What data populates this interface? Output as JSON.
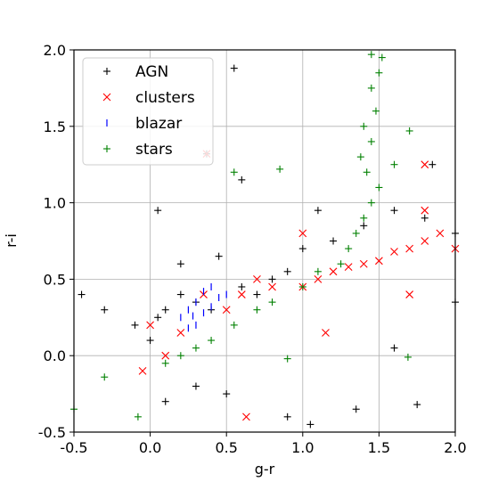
{
  "chart_data": {
    "type": "scatter",
    "xlabel": "g-r",
    "ylabel": "r-i",
    "xlim": [
      -0.5,
      2.0
    ],
    "ylim": [
      -0.5,
      2.0
    ],
    "xticks": [
      "-0.5",
      "0.0",
      "0.5",
      "1.0",
      "1.5",
      "2.0"
    ],
    "yticks": [
      "-0.5",
      "0.0",
      "0.5",
      "1.0",
      "1.5",
      "2.0"
    ],
    "grid": true,
    "legend_position": "top-left",
    "series": [
      {
        "name": "AGN",
        "marker": "+",
        "color": "#000000",
        "points": [
          [
            0.05,
            0.25
          ],
          [
            0.1,
            0.3
          ],
          [
            0.2,
            0.4
          ],
          [
            0.3,
            0.35
          ],
          [
            0.0,
            0.1
          ],
          [
            -0.1,
            0.2
          ],
          [
            0.4,
            0.3
          ],
          [
            0.6,
            0.45
          ],
          [
            0.7,
            0.4
          ],
          [
            0.8,
            0.5
          ],
          [
            0.9,
            0.55
          ],
          [
            1.0,
            0.7
          ],
          [
            1.2,
            0.75
          ],
          [
            1.4,
            0.85
          ],
          [
            1.6,
            0.95
          ],
          [
            1.8,
            0.9
          ],
          [
            2.0,
            0.8
          ],
          [
            0.55,
            1.88
          ],
          [
            0.37,
            1.32
          ],
          [
            0.05,
            0.95
          ],
          [
            0.6,
            1.15
          ],
          [
            1.1,
            0.95
          ],
          [
            1.85,
            1.25
          ],
          [
            -0.45,
            0.4
          ],
          [
            -0.3,
            0.3
          ],
          [
            0.1,
            -0.3
          ],
          [
            0.3,
            -0.2
          ],
          [
            0.5,
            -0.25
          ],
          [
            0.9,
            -0.4
          ],
          [
            1.05,
            -0.45
          ],
          [
            1.35,
            -0.35
          ],
          [
            1.75,
            -0.32
          ],
          [
            1.6,
            0.05
          ],
          [
            2.0,
            0.35
          ],
          [
            0.2,
            0.6
          ],
          [
            0.45,
            0.65
          ]
        ]
      },
      {
        "name": "clusters",
        "marker": "x",
        "color": "#ff0000",
        "points": [
          [
            0.0,
            0.2
          ],
          [
            0.1,
            0.0
          ],
          [
            -0.05,
            -0.1
          ],
          [
            0.2,
            0.15
          ],
          [
            0.35,
            0.4
          ],
          [
            0.5,
            0.3
          ],
          [
            0.6,
            0.4
          ],
          [
            0.7,
            0.5
          ],
          [
            0.8,
            0.45
          ],
          [
            1.0,
            0.45
          ],
          [
            1.1,
            0.5
          ],
          [
            1.2,
            0.55
          ],
          [
            1.3,
            0.58
          ],
          [
            1.4,
            0.6
          ],
          [
            1.5,
            0.62
          ],
          [
            1.6,
            0.68
          ],
          [
            1.7,
            0.7
          ],
          [
            1.8,
            0.75
          ],
          [
            1.9,
            0.8
          ],
          [
            2.0,
            0.7
          ],
          [
            1.8,
            1.25
          ],
          [
            0.37,
            1.32
          ],
          [
            0.63,
            -0.4
          ],
          [
            1.15,
            0.15
          ],
          [
            1.0,
            0.8
          ],
          [
            1.8,
            0.95
          ],
          [
            1.7,
            0.4
          ]
        ]
      },
      {
        "name": "blazar",
        "marker": "|",
        "color": "#0000ff",
        "points": [
          [
            0.2,
            0.25
          ],
          [
            0.25,
            0.3
          ],
          [
            0.3,
            0.35
          ],
          [
            0.35,
            0.28
          ],
          [
            0.4,
            0.32
          ],
          [
            0.45,
            0.38
          ],
          [
            0.3,
            0.2
          ],
          [
            0.25,
            0.18
          ],
          [
            0.4,
            0.45
          ],
          [
            0.5,
            0.4
          ],
          [
            0.35,
            0.42
          ],
          [
            0.28,
            0.26
          ]
        ]
      },
      {
        "name": "stars",
        "marker": "+",
        "color": "#008000",
        "points": [
          [
            1.45,
            1.97
          ],
          [
            1.52,
            1.95
          ],
          [
            1.5,
            1.85
          ],
          [
            1.45,
            1.75
          ],
          [
            1.48,
            1.6
          ],
          [
            1.4,
            1.5
          ],
          [
            1.45,
            1.4
          ],
          [
            1.38,
            1.3
          ],
          [
            1.42,
            1.2
          ],
          [
            1.5,
            1.1
          ],
          [
            1.45,
            1.0
          ],
          [
            1.4,
            0.9
          ],
          [
            1.35,
            0.8
          ],
          [
            1.3,
            0.7
          ],
          [
            1.25,
            0.6
          ],
          [
            1.1,
            0.55
          ],
          [
            1.0,
            0.45
          ],
          [
            0.8,
            0.35
          ],
          [
            0.7,
            0.3
          ],
          [
            0.55,
            0.2
          ],
          [
            0.4,
            0.1
          ],
          [
            0.3,
            0.05
          ],
          [
            0.2,
            0.0
          ],
          [
            0.1,
            -0.05
          ],
          [
            -0.3,
            -0.14
          ],
          [
            -0.08,
            -0.4
          ],
          [
            0.55,
            1.2
          ],
          [
            0.85,
            1.22
          ],
          [
            0.9,
            -0.02
          ],
          [
            1.7,
            1.47
          ],
          [
            1.69,
            -0.01
          ],
          [
            -0.5,
            -0.35
          ],
          [
            1.6,
            1.25
          ]
        ]
      }
    ]
  }
}
